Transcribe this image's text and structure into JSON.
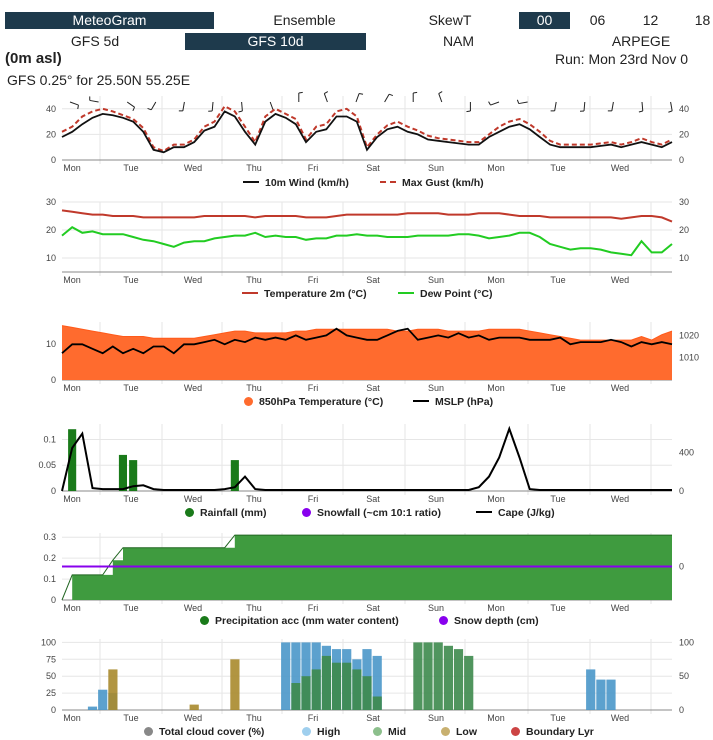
{
  "nav": {
    "row1": [
      {
        "label": "MeteoGram",
        "active": true
      },
      {
        "label": "Ensemble",
        "active": false
      },
      {
        "label": "SkewT",
        "active": false
      },
      {
        "label": "00",
        "active": true
      },
      {
        "label": "06",
        "active": false
      },
      {
        "label": "12",
        "active": false
      },
      {
        "label": "18",
        "active": false
      }
    ],
    "row2": [
      {
        "label": "GFS 5d",
        "active": false
      },
      {
        "label": "GFS 10d",
        "active": true
      },
      {
        "label": "NAM",
        "active": false
      },
      {
        "label": "ARPEGE",
        "active": false
      }
    ]
  },
  "header": {
    "elevation": "(0m asl)",
    "run": "Run: Mon 23rd Nov 0",
    "location": "GFS 0.25° for 25.50N 55.25E"
  },
  "days": [
    "Mon",
    "Tue",
    "Wed",
    "Thu",
    "Fri",
    "Sat",
    "Sun",
    "Mon",
    "Tue",
    "Wed"
  ],
  "colors": {
    "wind": "#111111",
    "gust": "#c0392b",
    "temperature": "#c0392b",
    "dewpoint": "#22cc22",
    "t850": "#ff6b2e",
    "mslp": "#000000",
    "rainfall": "#1a7a1a",
    "snowfall": "#8800ee",
    "cape": "#000000",
    "precip_acc": "#3f9b3f",
    "snow_depth": "#8800ee",
    "cloud_total": "#888888",
    "cloud_high": "#4a97c9",
    "cloud_mid": "#3d8a4d",
    "cloud_low": "#a88a2c",
    "cloud_bl": "#cc4444"
  },
  "legends": {
    "wind": [
      "10m Wind (km/h)",
      "Max Gust (km/h)"
    ],
    "temp": [
      "Temperature 2m (°C)",
      "Dew Point (°C)"
    ],
    "pressure": [
      "850hPa Temperature (°C)",
      "MSLP (hPa)"
    ],
    "rain": [
      "Rainfall (mm)",
      "Snowfall (~cm 10:1 ratio)",
      "Cape (J/kg)"
    ],
    "precip": [
      "Precipitation acc (mm water content)",
      "Snow depth (cm)"
    ],
    "cloud": [
      "Total cloud cover (%)",
      "High",
      "Mid",
      "Low",
      "Boundary Lyr"
    ]
  },
  "chart_data": [
    {
      "type": "line",
      "title": "",
      "ylim": [
        0,
        50
      ],
      "y_ticks": [
        "0",
        "20",
        "40"
      ],
      "y2_ticks": [
        "0",
        "20",
        "40"
      ],
      "series": [
        {
          "name": "10m Wind (km/h)",
          "values": [
            18,
            22,
            28,
            33,
            36,
            35,
            33,
            30,
            22,
            8,
            6,
            10,
            10,
            14,
            23,
            26,
            38,
            34,
            22,
            12,
            30,
            36,
            33,
            28,
            14,
            22,
            24,
            34,
            34,
            30,
            8,
            18,
            24,
            26,
            22,
            20,
            16,
            15,
            14,
            13,
            12,
            12,
            18,
            22,
            26,
            28,
            24,
            18,
            12,
            10,
            10,
            10,
            10,
            11,
            12,
            10,
            12,
            14,
            12,
            10,
            14
          ]
        },
        {
          "name": "Max Gust (km/h)",
          "values": [
            22,
            26,
            34,
            38,
            40,
            38,
            35,
            32,
            25,
            10,
            7,
            12,
            12,
            16,
            26,
            30,
            42,
            38,
            26,
            14,
            34,
            40,
            36,
            32,
            16,
            26,
            28,
            38,
            40,
            34,
            10,
            20,
            27,
            30,
            26,
            23,
            19,
            17,
            16,
            15,
            14,
            14,
            20,
            26,
            30,
            32,
            28,
            22,
            15,
            12,
            12,
            12,
            12,
            13,
            14,
            12,
            14,
            17,
            14,
            12,
            16
          ]
        }
      ]
    },
    {
      "type": "line",
      "ylim": [
        5,
        30
      ],
      "y_ticks": [
        "10",
        "20",
        "30"
      ],
      "y2_ticks": [
        "10",
        "20",
        "30"
      ],
      "series": [
        {
          "name": "Temperature 2m (°C)",
          "values": [
            27,
            26.5,
            26,
            25.5,
            25.5,
            25,
            25,
            25,
            24.5,
            24.5,
            24.5,
            24.5,
            24.5,
            24.5,
            25,
            25,
            25,
            25,
            25,
            24.5,
            25,
            25,
            25,
            25,
            24.5,
            24.5,
            24.5,
            25,
            25.5,
            25.5,
            25.5,
            25.5,
            25.5,
            25.5,
            26,
            26,
            26,
            26,
            25.5,
            25.5,
            25.5,
            26,
            26,
            26,
            25.5,
            25,
            25,
            25,
            24.5,
            24.5,
            24.5,
            24.5,
            24.5,
            24.5,
            24.5,
            24,
            24.5,
            25,
            25,
            24.5,
            23
          ]
        },
        {
          "name": "Dew Point (°C)",
          "values": [
            18,
            21,
            19,
            19.5,
            18.5,
            18.5,
            18.5,
            17.5,
            16.5,
            16,
            15,
            14,
            15.5,
            16,
            16,
            17,
            17.5,
            18,
            18,
            19,
            17.5,
            18,
            17.5,
            17.5,
            16.5,
            17,
            17,
            18,
            18,
            18.5,
            18,
            18,
            17.5,
            17.5,
            17.5,
            18,
            18,
            18,
            18,
            18.5,
            18.5,
            18,
            17,
            17.5,
            18,
            19,
            19,
            17.5,
            15,
            14,
            13,
            13.5,
            13.5,
            13,
            12,
            11.5,
            11,
            16,
            12,
            12,
            15
          ]
        }
      ]
    },
    {
      "type": "area",
      "ylim": [
        0,
        16
      ],
      "y_ticks": [
        "0",
        "10"
      ],
      "y2_ticks": [
        "1010",
        "1020"
      ],
      "series": [
        {
          "name": "850hPa Temperature (°C)",
          "values": [
            15,
            14.5,
            14,
            13.5,
            13,
            12.5,
            12,
            12,
            12,
            11.5,
            11.5,
            11.5,
            11.5,
            11.5,
            12,
            12.5,
            13,
            13.5,
            13.5,
            13,
            13,
            13,
            13,
            13.5,
            13.5,
            14,
            14,
            14,
            14,
            14,
            14,
            14,
            14,
            13.5,
            13.5,
            14,
            14,
            14,
            13.5,
            13.5,
            13.5,
            13.5,
            14,
            14,
            14,
            14,
            13.5,
            13,
            12.5,
            12,
            11.5,
            11,
            11,
            11,
            11,
            11,
            11,
            12,
            11,
            12.5,
            13.5
          ]
        },
        {
          "name": "MSLP (hPa)",
          "values": [
            1012,
            1016,
            1016,
            1014,
            1012,
            1015,
            1012,
            1014,
            1012,
            1015,
            1015,
            1012,
            1016,
            1016,
            1017,
            1018,
            1016,
            1018,
            1017,
            1019,
            1018,
            1019,
            1018,
            1020,
            1018,
            1019,
            1020,
            1023,
            1020,
            1019,
            1018,
            1018,
            1020,
            1022,
            1023,
            1018,
            1019,
            1020,
            1019,
            1021,
            1019,
            1020,
            1018,
            1019,
            1019,
            1019,
            1018,
            1018,
            1018,
            1019,
            1016,
            1017,
            1017,
            1017,
            1018,
            1017,
            1015,
            1017,
            1016,
            1017,
            1016
          ]
        }
      ]
    },
    {
      "type": "bar",
      "ylim": [
        0,
        0.13
      ],
      "y_ticks": [
        "0",
        "0.05",
        "0.1"
      ],
      "y2_ticks": [
        "0",
        "400"
      ],
      "series": [
        {
          "name": "Rainfall (mm)",
          "values": [
            0,
            0.12,
            0,
            0,
            0,
            0,
            0.07,
            0.06,
            0,
            0,
            0,
            0,
            0,
            0,
            0,
            0,
            0,
            0.06,
            0,
            0,
            0,
            0,
            0,
            0,
            0,
            0,
            0,
            0,
            0,
            0,
            0,
            0,
            0,
            0,
            0,
            0,
            0,
            0,
            0,
            0,
            0,
            0,
            0,
            0,
            0,
            0,
            0,
            0,
            0,
            0,
            0,
            0,
            0,
            0,
            0,
            0,
            0,
            0,
            0,
            0,
            0
          ]
        },
        {
          "name": "Snowfall (~cm 10:1 ratio)",
          "values": []
        },
        {
          "name": "Cape (J/kg)",
          "values": [
            0,
            450,
            600,
            30,
            20,
            20,
            20,
            50,
            60,
            20,
            10,
            10,
            10,
            10,
            10,
            10,
            20,
            40,
            150,
            20,
            10,
            10,
            10,
            10,
            10,
            10,
            10,
            10,
            10,
            10,
            10,
            10,
            10,
            10,
            10,
            10,
            10,
            10,
            10,
            10,
            10,
            40,
            150,
            350,
            650,
            350,
            20,
            10,
            10,
            10,
            10,
            10,
            10,
            10,
            10,
            10,
            10,
            10,
            10,
            10,
            10
          ]
        }
      ]
    },
    {
      "type": "area",
      "ylim": [
        0,
        0.32
      ],
      "y_ticks": [
        "0",
        "0.1",
        "0.2",
        "0.3"
      ],
      "y2_ticks": [
        "0"
      ],
      "series": [
        {
          "name": "Precipitation acc (mm water content)",
          "values": [
            0,
            0.12,
            0.12,
            0.12,
            0.12,
            0.19,
            0.25,
            0.25,
            0.25,
            0.25,
            0.25,
            0.25,
            0.25,
            0.25,
            0.25,
            0.25,
            0.25,
            0.31,
            0.31,
            0.31,
            0.31,
            0.31,
            0.31,
            0.31,
            0.31,
            0.31,
            0.31,
            0.31,
            0.31,
            0.31,
            0.31,
            0.31,
            0.31,
            0.31,
            0.31,
            0.31,
            0.31,
            0.31,
            0.31,
            0.31,
            0.31,
            0.31,
            0.31,
            0.31,
            0.31,
            0.31,
            0.31,
            0.31,
            0.31,
            0.31,
            0.31,
            0.31,
            0.31,
            0.31,
            0.31,
            0.31,
            0.31,
            0.31,
            0.31,
            0.31,
            0.31
          ]
        },
        {
          "name": "Snow depth (cm)",
          "values": [
            0
          ]
        }
      ]
    },
    {
      "type": "bar",
      "ylim": [
        0,
        105
      ],
      "y_ticks": [
        "0",
        "25",
        "50",
        "75",
        "100"
      ],
      "y2_ticks": [
        "0",
        "50",
        "100"
      ],
      "series": [
        {
          "name": "Total cloud cover (%)",
          "values": []
        },
        {
          "name": "High",
          "values": [
            0,
            0,
            0,
            5,
            30,
            25,
            0,
            0,
            0,
            0,
            0,
            0,
            0,
            0,
            0,
            0,
            0,
            0,
            0,
            0,
            0,
            0,
            100,
            100,
            100,
            100,
            95,
            90,
            90,
            75,
            90,
            80,
            0,
            0,
            0,
            0,
            0,
            0,
            0,
            0,
            0,
            0,
            0,
            0,
            0,
            0,
            0,
            0,
            0,
            0,
            0,
            0,
            60,
            45,
            45,
            0,
            0,
            0,
            0,
            0,
            0
          ]
        },
        {
          "name": "Mid",
          "values": [
            0,
            0,
            0,
            0,
            0,
            0,
            0,
            0,
            0,
            0,
            0,
            0,
            0,
            0,
            0,
            0,
            0,
            0,
            0,
            0,
            0,
            0,
            0,
            40,
            50,
            60,
            80,
            70,
            70,
            60,
            50,
            20,
            0,
            0,
            0,
            100,
            100,
            100,
            95,
            90,
            80,
            0,
            0,
            0,
            0,
            0,
            0,
            0,
            0,
            0,
            0,
            0,
            0,
            0,
            0,
            0,
            0,
            0,
            0,
            0,
            0
          ]
        },
        {
          "name": "Low",
          "values": [
            0,
            0,
            0,
            0,
            0,
            60,
            0,
            0,
            0,
            0,
            0,
            0,
            0,
            8,
            0,
            0,
            0,
            75,
            0,
            0,
            0,
            0,
            0,
            0,
            0,
            0,
            0,
            0,
            0,
            0,
            0,
            0,
            0,
            0,
            0,
            0,
            0,
            0,
            0,
            0,
            0,
            0,
            0,
            0,
            0,
            0,
            0,
            0,
            0,
            0,
            0,
            0,
            0,
            0,
            0,
            0,
            0,
            0,
            0,
            0,
            0
          ]
        },
        {
          "name": "Boundary Lyr",
          "values": []
        }
      ]
    }
  ]
}
